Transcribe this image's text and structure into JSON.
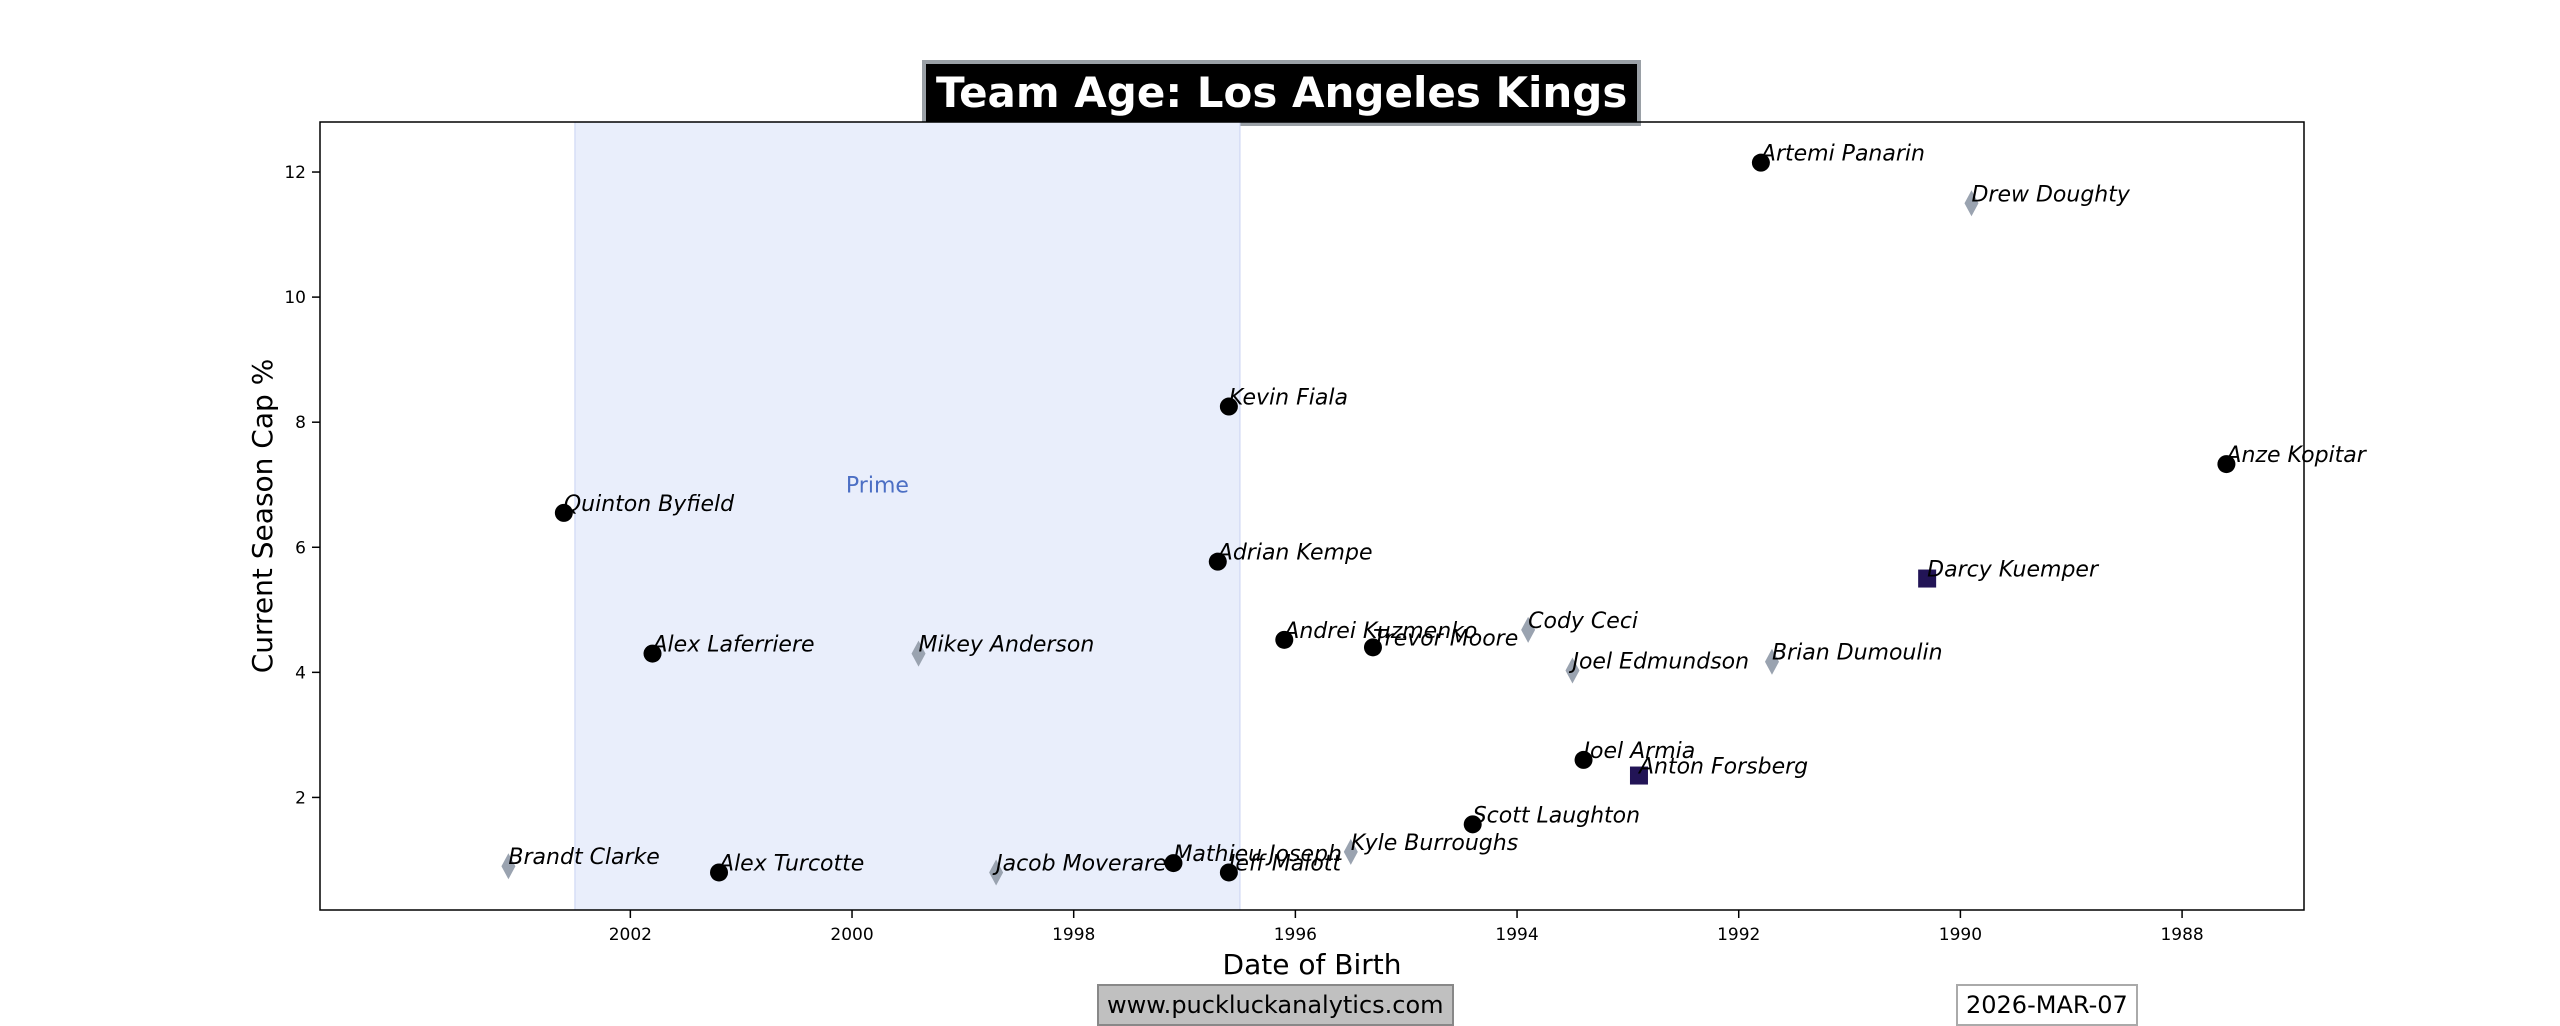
{
  "chart_data": {
    "type": "scatter",
    "title": "Team Age: Los Angeles Kings",
    "xlabel": "Date of Birth",
    "ylabel": "Current Season Cap %",
    "x_axis_reversed": true,
    "xlim": [
      2004.8,
      1986.9
    ],
    "ylim": [
      0.2,
      12.8
    ],
    "xticks": [
      2002,
      2000,
      1998,
      1996,
      1994,
      1992,
      1990,
      1988
    ],
    "yticks": [
      2,
      4,
      6,
      8,
      10,
      12
    ],
    "prime_band": {
      "label": "Prime",
      "x_start": 2002.5,
      "x_end": 1996.5,
      "color": "#e9eefb",
      "label_color": "#4c6fc4"
    },
    "marker_colors": {
      "circle": "#000000",
      "diamond": "#9aa3b0",
      "square": "#221456"
    },
    "players": [
      {
        "name": "Artemi Panarin",
        "x": 1991.8,
        "y": 12.15,
        "marker": "circle"
      },
      {
        "name": "Drew Doughty",
        "x": 1989.9,
        "y": 11.5,
        "marker": "diamond"
      },
      {
        "name": "Kevin Fiala",
        "x": 1996.6,
        "y": 8.25,
        "marker": "circle"
      },
      {
        "name": "Anze Kopitar",
        "x": 1987.6,
        "y": 7.33,
        "marker": "circle"
      },
      {
        "name": "Quinton Byfield",
        "x": 2002.6,
        "y": 6.55,
        "marker": "circle"
      },
      {
        "name": "Adrian Kempe",
        "x": 1996.7,
        "y": 5.77,
        "marker": "circle"
      },
      {
        "name": "Darcy Kuemper",
        "x": 1990.3,
        "y": 5.5,
        "marker": "square"
      },
      {
        "name": "Cody Ceci",
        "x": 1993.9,
        "y": 4.68,
        "marker": "diamond"
      },
      {
        "name": "Andrei Kuzmenko",
        "x": 1996.1,
        "y": 4.52,
        "marker": "circle"
      },
      {
        "name": "Trevor Moore",
        "x": 1995.3,
        "y": 4.4,
        "marker": "circle"
      },
      {
        "name": "Mikey Anderson",
        "x": 1999.4,
        "y": 4.3,
        "marker": "diamond"
      },
      {
        "name": "Alex Laferriere",
        "x": 2001.8,
        "y": 4.3,
        "marker": "circle"
      },
      {
        "name": "Brian Dumoulin",
        "x": 1991.7,
        "y": 4.17,
        "marker": "diamond"
      },
      {
        "name": "Joel Edmundson",
        "x": 1993.5,
        "y": 4.03,
        "marker": "diamond"
      },
      {
        "name": "Joel Armia",
        "x": 1993.4,
        "y": 2.6,
        "marker": "circle"
      },
      {
        "name": "Anton Forsberg",
        "x": 1992.9,
        "y": 2.35,
        "marker": "square"
      },
      {
        "name": "Scott Laughton",
        "x": 1994.4,
        "y": 1.57,
        "marker": "circle"
      },
      {
        "name": "Kyle Burroughs",
        "x": 1995.5,
        "y": 1.13,
        "marker": "diamond"
      },
      {
        "name": "Mathieu Joseph",
        "x": 1997.1,
        "y": 0.95,
        "marker": "circle"
      },
      {
        "name": "Brandt Clarke",
        "x": 2003.1,
        "y": 0.9,
        "marker": "diamond"
      },
      {
        "name": "Alex Turcotte",
        "x": 2001.2,
        "y": 0.8,
        "marker": "circle"
      },
      {
        "name": "Jacob Moverare",
        "x": 1998.7,
        "y": 0.8,
        "marker": "diamond"
      },
      {
        "name": "Jeff Malott",
        "x": 1996.6,
        "y": 0.8,
        "marker": "circle"
      }
    ]
  },
  "footer": {
    "source": "www.puckluckanalytics.com",
    "date": "2026-MAR-07"
  }
}
